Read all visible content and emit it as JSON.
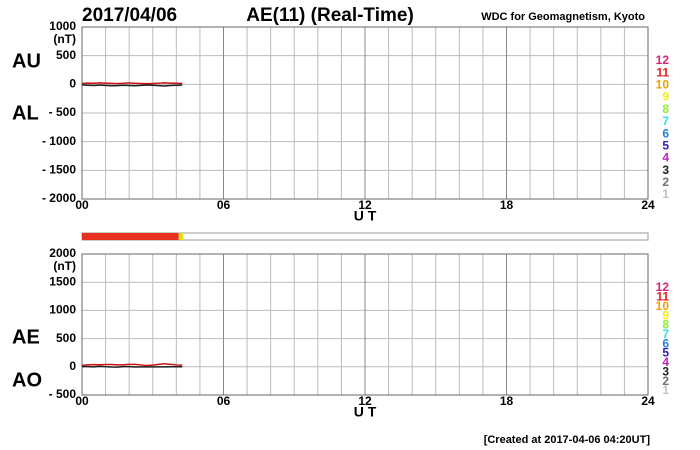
{
  "header": {
    "date": "2017/04/06",
    "title": "AE(11) (Real-Time)",
    "source": "WDC for Geomagnetism, Kyoto"
  },
  "chart_data": [
    {
      "type": "line",
      "y_unit": "(nT)",
      "x_label": "U T",
      "xlim": [
        0,
        24
      ],
      "xticks": [
        {
          "value": 0,
          "label": "00"
        },
        {
          "value": 6,
          "label": "06"
        },
        {
          "value": 12,
          "label": "12"
        },
        {
          "value": 18,
          "label": "18"
        },
        {
          "value": 24,
          "label": "24"
        }
      ],
      "ylim": [
        -2000,
        1000
      ],
      "yticks": [
        1000,
        500,
        0,
        {
          "value": -500,
          "label": "- 500"
        },
        {
          "value": -1000,
          "label": "- 1000"
        },
        {
          "value": -1500,
          "label": "- 1500"
        },
        {
          "value": -2000,
          "label": "- 2000"
        }
      ],
      "grid": true,
      "x": [
        0,
        0.25,
        0.5,
        0.75,
        1,
        1.25,
        1.5,
        1.75,
        2,
        2.25,
        2.5,
        2.75,
        3,
        3.25,
        3.5,
        3.75,
        4,
        4.25
      ],
      "series": [
        {
          "name": "AU",
          "color": "#cc1010",
          "values": [
            15,
            20,
            18,
            25,
            22,
            16,
            12,
            20,
            24,
            18,
            15,
            10,
            14,
            20,
            25,
            22,
            18,
            15
          ]
        },
        {
          "name": "AL",
          "color": "#202020",
          "values": [
            -10,
            -15,
            -20,
            -12,
            -18,
            -25,
            -22,
            -15,
            -20,
            -24,
            -18,
            -12,
            -16,
            -22,
            -28,
            -20,
            -15,
            -12
          ]
        }
      ],
      "station_scale": [
        {
          "label": "12",
          "color": "#e0207a"
        },
        {
          "label": "11",
          "color": "#e02020"
        },
        {
          "label": "10",
          "color": "#f0a000"
        },
        {
          "label": "9",
          "color": "#f0f000"
        },
        {
          "label": "8",
          "color": "#90f030"
        },
        {
          "label": "7",
          "color": "#30e0e0"
        },
        {
          "label": "6",
          "color": "#2080e0"
        },
        {
          "label": "5",
          "color": "#3020c0"
        },
        {
          "label": "4",
          "color": "#c020c0"
        },
        {
          "label": "3",
          "color": "#202020"
        },
        {
          "label": "2",
          "color": "#707070"
        },
        {
          "label": "1",
          "color": "#c0c0c0"
        }
      ]
    },
    {
      "type": "line",
      "y_unit": "(nT)",
      "x_label": "U T",
      "xlim": [
        0,
        24
      ],
      "xticks": [
        {
          "value": 0,
          "label": "00"
        },
        {
          "value": 6,
          "label": "06"
        },
        {
          "value": 12,
          "label": "12"
        },
        {
          "value": 18,
          "label": "18"
        },
        {
          "value": 24,
          "label": "24"
        }
      ],
      "ylim": [
        -500,
        2000
      ],
      "yticks": [
        2000,
        1500,
        1000,
        500,
        0,
        {
          "value": -500,
          "label": "- 500"
        }
      ],
      "grid": true,
      "x": [
        0,
        0.25,
        0.5,
        0.75,
        1,
        1.25,
        1.5,
        1.75,
        2,
        2.25,
        2.5,
        2.75,
        3,
        3.25,
        3.5,
        3.75,
        4,
        4.25
      ],
      "series": [
        {
          "name": "AE",
          "color": "#cc1010",
          "values": [
            25,
            35,
            38,
            37,
            40,
            41,
            34,
            35,
            44,
            42,
            33,
            22,
            30,
            42,
            53,
            42,
            33,
            27
          ]
        },
        {
          "name": "AO",
          "color": "#202020",
          "values": [
            2.5,
            2.5,
            -1,
            6.5,
            2,
            -4.5,
            -5,
            2.5,
            2,
            -3,
            -1.5,
            -1,
            -1,
            -1,
            -1.5,
            1,
            1.5,
            1.5
          ]
        }
      ],
      "station_scale": [
        {
          "label": "12",
          "color": "#e0207a"
        },
        {
          "label": "11",
          "color": "#e02020"
        },
        {
          "label": "10",
          "color": "#f0a000"
        },
        {
          "label": "9",
          "color": "#f0f000"
        },
        {
          "label": "8",
          "color": "#90f030"
        },
        {
          "label": "7",
          "color": "#30e0e0"
        },
        {
          "label": "6",
          "color": "#2080e0"
        },
        {
          "label": "5",
          "color": "#3020c0"
        },
        {
          "label": "4",
          "color": "#c020c0"
        },
        {
          "label": "3",
          "color": "#202020"
        },
        {
          "label": "2",
          "color": "#707070"
        },
        {
          "label": "1",
          "color": "#c0c0c0"
        }
      ]
    }
  ],
  "coverage_bar": [
    {
      "start": 0,
      "end": 4.1,
      "color": "#e8301e"
    },
    {
      "start": 4.1,
      "end": 4.3,
      "color": "#e0e020"
    }
  ],
  "footer": "[Created at 2017-04-06 04:20UT]"
}
